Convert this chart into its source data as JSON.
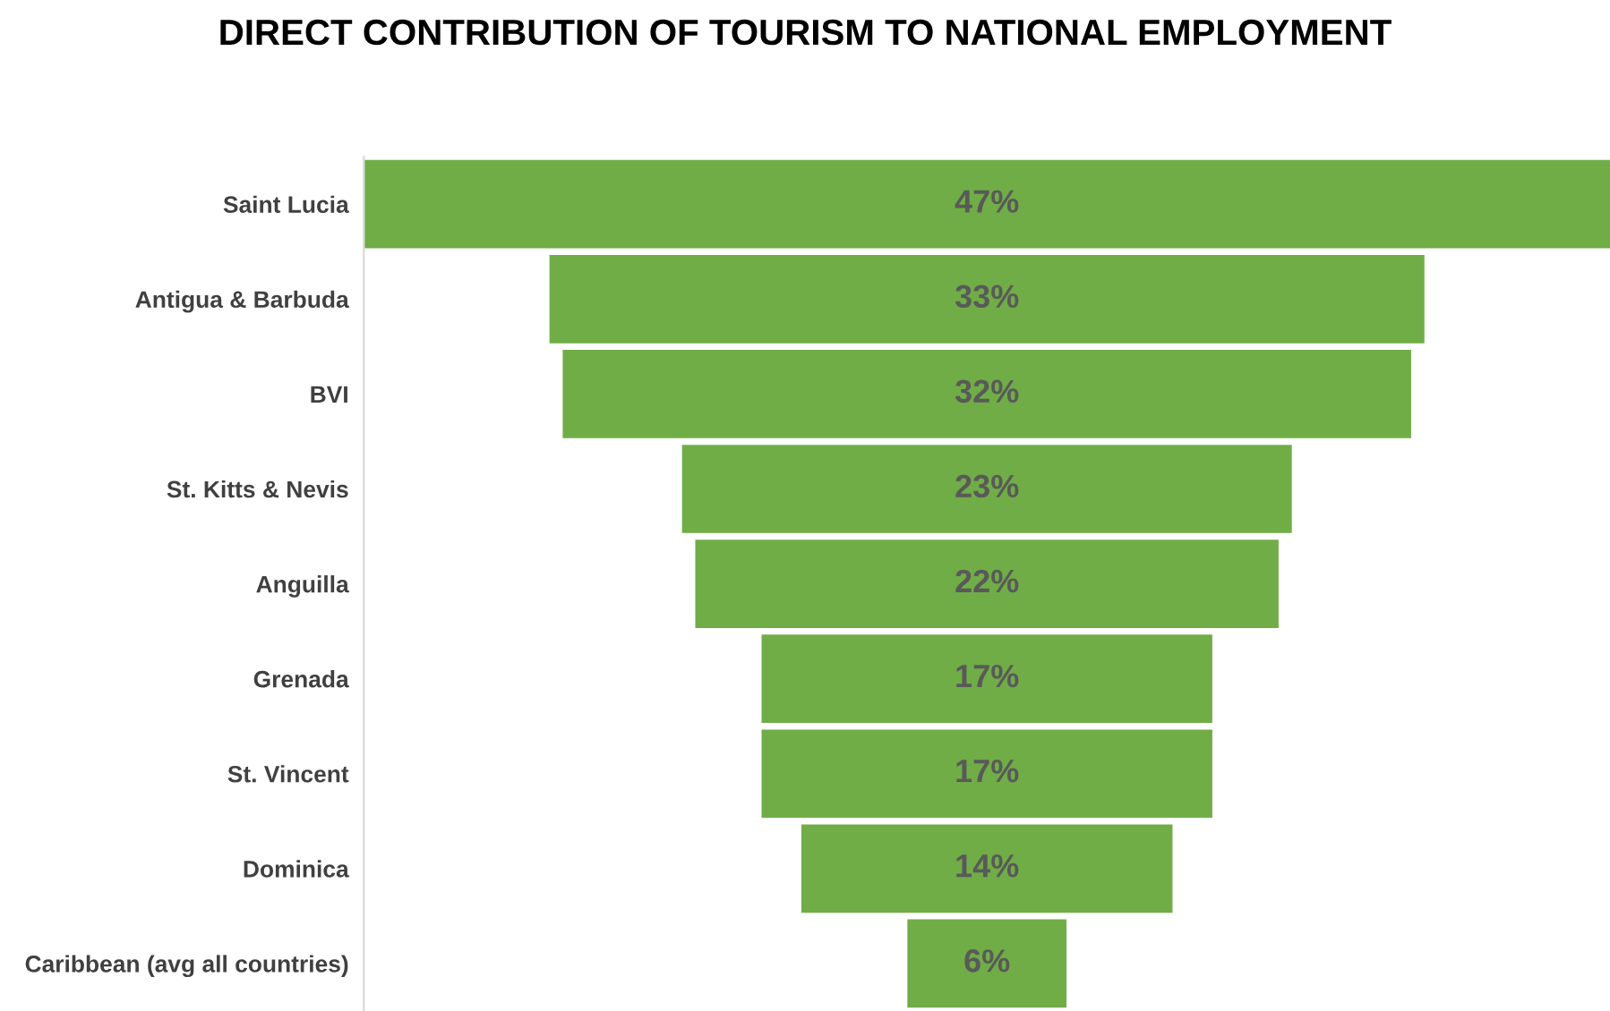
{
  "chart_data": {
    "type": "other",
    "title": "DIRECT CONTRIBUTION OF TOURISM TO NATIONAL EMPLOYMENT",
    "categories": [
      "Saint Lucia",
      "Antigua & Barbuda",
      "BVI",
      "St. Kitts & Nevis",
      "Anguilla",
      "Grenada",
      "St. Vincent",
      "Dominica",
      "Caribbean (avg all countries)"
    ],
    "values": [
      47,
      33,
      32,
      23,
      22,
      17,
      17,
      14,
      6
    ],
    "value_labels": [
      "47%",
      "33%",
      "32%",
      "23%",
      "22%",
      "17%",
      "17%",
      "14%",
      "6%"
    ],
    "color": "#70ad47"
  }
}
